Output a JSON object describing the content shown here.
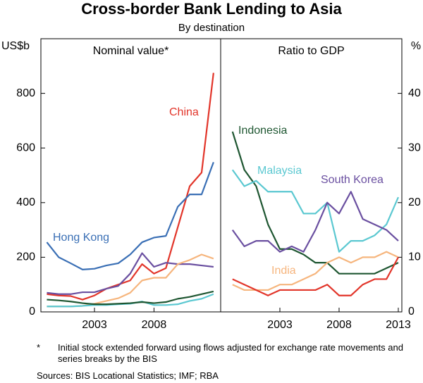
{
  "title": "Cross-border Bank Lending to Asia",
  "subtitle": "By destination",
  "footnote": {
    "marker": "*",
    "text": "Initial stock extended forward using flows adjusted for exchange rate movements and series breaks by the BIS"
  },
  "sources": "Sources: BIS Locational Statistics; IMF; RBA",
  "chart_data": [
    {
      "type": "line",
      "title": "Nominal value*",
      "y_label": "US$b",
      "x": [
        1999,
        2000,
        2001,
        2002,
        2003,
        2004,
        2005,
        2006,
        2007,
        2008,
        2009,
        2010,
        2011,
        2012,
        2013
      ],
      "xlim": [
        1998.5,
        2013.6
      ],
      "xticks": [
        2003,
        2008
      ],
      "ylim": [
        0,
        1000
      ],
      "yticks": [
        0,
        200,
        400,
        600,
        800
      ],
      "series": [
        {
          "name": "China",
          "color": "#e2352a",
          "values": [
            65,
            60,
            58,
            45,
            60,
            85,
            100,
            115,
            175,
            140,
            160,
            310,
            460,
            510,
            875
          ]
        },
        {
          "name": "Hong Kong",
          "color": "#3a6fb5",
          "values": [
            255,
            200,
            178,
            155,
            158,
            170,
            178,
            210,
            255,
            272,
            278,
            385,
            430,
            430,
            548
          ]
        },
        {
          "color": "#6a4fa0",
          "values": [
            70,
            65,
            65,
            72,
            72,
            85,
            95,
            140,
            215,
            165,
            180,
            175,
            175,
            170,
            165
          ]
        },
        {
          "color": "#f6b57d",
          "values": [
            20,
            20,
            20,
            22,
            30,
            40,
            50,
            70,
            115,
            125,
            125,
            175,
            190,
            210,
            195
          ]
        },
        {
          "color": "#5bc8d1",
          "values": [
            20,
            20,
            20,
            22,
            25,
            25,
            28,
            30,
            38,
            25,
            25,
            28,
            40,
            48,
            65
          ]
        },
        {
          "color": "#1e5631",
          "values": [
            45,
            42,
            38,
            32,
            28,
            28,
            30,
            32,
            36,
            32,
            36,
            48,
            55,
            65,
            75
          ]
        }
      ]
    },
    {
      "type": "line",
      "title": "Ratio to GDP",
      "y_label": "%",
      "x": [
        1999,
        2000,
        2001,
        2002,
        2003,
        2004,
        2005,
        2006,
        2007,
        2008,
        2009,
        2010,
        2011,
        2012,
        2013
      ],
      "xlim": [
        1998,
        2013.3
      ],
      "xticks": [
        2003,
        2008,
        2013
      ],
      "ylim": [
        0,
        50
      ],
      "yticks": [
        0,
        10,
        20,
        30,
        40
      ],
      "series": [
        {
          "name": "Indonesia",
          "color": "#1e5631",
          "values": [
            33,
            26,
            23,
            16,
            11.5,
            11.5,
            10.5,
            9,
            9,
            7,
            7,
            7,
            7,
            8,
            9
          ]
        },
        {
          "name": "Malaysia",
          "color": "#5bc8d1",
          "values": [
            26,
            23,
            24,
            22,
            22,
            22,
            18,
            18,
            20,
            11,
            13,
            13,
            14,
            16,
            21
          ]
        },
        {
          "name": "South Korea",
          "color": "#6a4fa0",
          "values": [
            15,
            12,
            13,
            13,
            11,
            12,
            11,
            15,
            20,
            18,
            22,
            17,
            16,
            15,
            13
          ]
        },
        {
          "name": "India",
          "color": "#f6b57d",
          "values": [
            5,
            4,
            4,
            4,
            5,
            5,
            6,
            7,
            9,
            10,
            9,
            10,
            10,
            11,
            10
          ]
        },
        {
          "color": "#e2352a",
          "values": [
            6,
            5,
            4,
            3,
            4,
            4,
            4,
            4,
            5,
            3,
            3,
            5,
            6,
            6,
            10
          ]
        }
      ]
    }
  ]
}
